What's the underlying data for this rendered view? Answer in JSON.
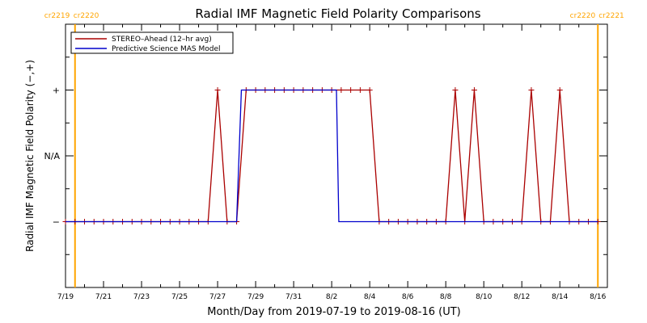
{
  "chart_data": {
    "type": "line",
    "title": "Radial IMF Magnetic Field Polarity Comparisons",
    "xlabel": "Month/Day from 2019-07-19 to 2019-08-16 (UT)",
    "ylabel": "Radial IMF Magnetic Field Polarity (−,+)",
    "xlim": [
      "2019-07-19T00:00",
      "2019-08-16T12:00"
    ],
    "x_ticks": [
      "7/19",
      "7/21",
      "7/23",
      "7/25",
      "7/27",
      "7/29",
      "7/31",
      "8/2",
      "8/4",
      "8/6",
      "8/8",
      "8/10",
      "8/12",
      "8/14",
      "8/16"
    ],
    "y_categories": [
      "−",
      "N/A",
      "+"
    ],
    "ylim": [
      -2,
      2
    ],
    "grid": false,
    "legend_position": "top-left",
    "carrington_markers": [
      {
        "label_left": "cr2219",
        "label_right": "cr2220",
        "x": "2019-07-19T12:00",
        "color": "#FFA500"
      },
      {
        "label_left": "cr2220",
        "label_right": "cr2221",
        "x": "2019-08-16T00:00",
        "color": "#FFA500"
      }
    ],
    "series": [
      {
        "name": "STEREO–Ahead (12–hr avg)",
        "color": "#AA0000",
        "markers": true,
        "points": [
          [
            "2019-07-19T00:00",
            -1
          ],
          [
            "2019-07-19T12:00",
            -1
          ],
          [
            "2019-07-20T00:00",
            -1
          ],
          [
            "2019-07-20T12:00",
            -1
          ],
          [
            "2019-07-21T00:00",
            -1
          ],
          [
            "2019-07-21T12:00",
            -1
          ],
          [
            "2019-07-22T00:00",
            -1
          ],
          [
            "2019-07-22T12:00",
            -1
          ],
          [
            "2019-07-23T00:00",
            -1
          ],
          [
            "2019-07-23T12:00",
            -1
          ],
          [
            "2019-07-24T00:00",
            -1
          ],
          [
            "2019-07-24T12:00",
            -1
          ],
          [
            "2019-07-25T00:00",
            -1
          ],
          [
            "2019-07-25T12:00",
            -1
          ],
          [
            "2019-07-26T00:00",
            -1
          ],
          [
            "2019-07-26T12:00",
            -1
          ],
          [
            "2019-07-27T00:00",
            1
          ],
          [
            "2019-07-27T12:00",
            -1
          ],
          [
            "2019-07-28T00:00",
            -1
          ],
          [
            "2019-07-28T12:00",
            1
          ],
          [
            "2019-07-29T00:00",
            1
          ],
          [
            "2019-07-29T12:00",
            1
          ],
          [
            "2019-07-30T00:00",
            1
          ],
          [
            "2019-07-30T12:00",
            1
          ],
          [
            "2019-07-31T00:00",
            1
          ],
          [
            "2019-07-31T12:00",
            1
          ],
          [
            "2019-08-01T00:00",
            1
          ],
          [
            "2019-08-01T12:00",
            1
          ],
          [
            "2019-08-02T00:00",
            1
          ],
          [
            "2019-08-02T12:00",
            1
          ],
          [
            "2019-08-03T00:00",
            1
          ],
          [
            "2019-08-03T12:00",
            1
          ],
          [
            "2019-08-04T00:00",
            1
          ],
          [
            "2019-08-04T12:00",
            -1
          ],
          [
            "2019-08-05T00:00",
            -1
          ],
          [
            "2019-08-05T12:00",
            -1
          ],
          [
            "2019-08-06T00:00",
            -1
          ],
          [
            "2019-08-06T12:00",
            -1
          ],
          [
            "2019-08-07T00:00",
            -1
          ],
          [
            "2019-08-07T12:00",
            -1
          ],
          [
            "2019-08-08T00:00",
            -1
          ],
          [
            "2019-08-08T12:00",
            1
          ],
          [
            "2019-08-09T00:00",
            -1
          ],
          [
            "2019-08-09T12:00",
            1
          ],
          [
            "2019-08-10T00:00",
            -1
          ],
          [
            "2019-08-10T12:00",
            -1
          ],
          [
            "2019-08-11T00:00",
            -1
          ],
          [
            "2019-08-11T12:00",
            -1
          ],
          [
            "2019-08-12T00:00",
            -1
          ],
          [
            "2019-08-12T12:00",
            1
          ],
          [
            "2019-08-13T00:00",
            -1
          ],
          [
            "2019-08-13T12:00",
            -1
          ],
          [
            "2019-08-14T00:00",
            1
          ],
          [
            "2019-08-14T12:00",
            -1
          ],
          [
            "2019-08-15T00:00",
            -1
          ],
          [
            "2019-08-15T12:00",
            -1
          ],
          [
            "2019-08-16T00:00",
            -1
          ]
        ]
      },
      {
        "name": "Predictive Science MAS Model",
        "color": "#0000CC",
        "markers": false,
        "points": [
          [
            "2019-07-19T00:00",
            -1
          ],
          [
            "2019-07-28T00:00",
            -1
          ],
          [
            "2019-07-28T06:00",
            1
          ],
          [
            "2019-08-02T06:00",
            1
          ],
          [
            "2019-08-02T09:00",
            -1
          ],
          [
            "2019-08-16T00:00",
            -1
          ]
        ]
      }
    ]
  }
}
